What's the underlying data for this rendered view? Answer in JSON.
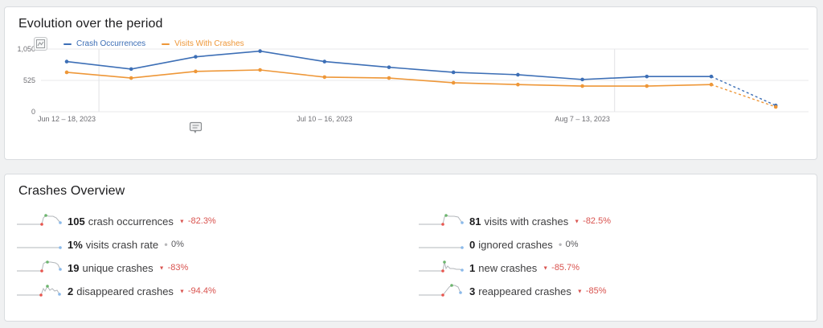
{
  "evolution_card": {
    "title": "Evolution over the period",
    "legend": [
      {
        "label": "Crash Occurrences",
        "color": "#3d6fb6"
      },
      {
        "label": "Visits With Crashes",
        "color": "#ee9738"
      }
    ]
  },
  "chart_data": {
    "type": "line",
    "title": "Evolution over the period",
    "x_unit": "week",
    "categories_visible_labels": [
      {
        "index": 0,
        "label": "Jun 12 – 18, 2023"
      },
      {
        "index": 4,
        "label": "Jul 10 – 16, 2023"
      },
      {
        "index": 8,
        "label": "Aug 7 – 13, 2023"
      }
    ],
    "series": [
      {
        "name": "Crash Occurrences",
        "color": "#3d6fb6",
        "values": [
          840,
          715,
          920,
          1015,
          840,
          745,
          660,
          620,
          540,
          590,
          590,
          105
        ]
      },
      {
        "name": "Visits With Crashes",
        "color": "#ee9738",
        "values": [
          660,
          565,
          675,
          700,
          580,
          565,
          485,
          455,
          430,
          430,
          455,
          81
        ]
      }
    ],
    "ylim": [
      0,
      1050
    ],
    "yticks": [
      0,
      525,
      1050
    ],
    "ytick_labels": [
      "0",
      "525",
      "1,050"
    ],
    "vgridlines": [
      0.5,
      8.5
    ],
    "last_segment_dashed": true,
    "grid": true,
    "legend_position": "top-left"
  },
  "overview_card": {
    "title": "Crashes Overview",
    "trend_icons": {
      "down": "▼",
      "flat": "●"
    },
    "spark_colors": {
      "line": "#b3b7bb",
      "red": "#e8564f",
      "green": "#6cb56d",
      "blue": "#8ab9ea"
    },
    "metrics": [
      {
        "value": "105",
        "label": "crash occurrences",
        "change": "-82.3%",
        "trend": "down",
        "spark": {
          "pts": [
            [
              0,
              15
            ],
            [
              31,
              15
            ],
            [
              33,
              7
            ],
            [
              36,
              4
            ],
            [
              40,
              5
            ],
            [
              45,
              5
            ],
            [
              49,
              7
            ],
            [
              54,
              13
            ]
          ],
          "red": [
            31,
            15
          ],
          "green": [
            36,
            4
          ],
          "blue": [
            54,
            13
          ]
        }
      },
      {
        "value": "81",
        "label": "visits with crashes",
        "change": "-82.5%",
        "trend": "down",
        "spark": {
          "pts": [
            [
              0,
              15
            ],
            [
              30,
              15
            ],
            [
              32,
              6
            ],
            [
              34,
              4
            ],
            [
              38,
              5
            ],
            [
              44,
              5
            ],
            [
              49,
              6
            ],
            [
              54,
              13
            ]
          ],
          "red": [
            30,
            15
          ],
          "green": [
            34,
            4
          ],
          "blue": [
            54,
            13
          ]
        }
      },
      {
        "value": "1%",
        "label": "visits crash rate",
        "change": "0%",
        "trend": "flat",
        "spark": {
          "pts": [
            [
              0,
              15
            ],
            [
              54,
              15
            ]
          ],
          "blue": [
            54,
            15
          ]
        }
      },
      {
        "value": "0",
        "label": "ignored crashes",
        "change": "0%",
        "trend": "flat",
        "spark": {
          "pts": [
            [
              0,
              15
            ],
            [
              54,
              15
            ]
          ],
          "blue": [
            54,
            15
          ]
        }
      },
      {
        "value": "19",
        "label": "unique crashes",
        "change": "-83%",
        "trend": "down",
        "spark": {
          "pts": [
            [
              0,
              15
            ],
            [
              31,
              15
            ],
            [
              33,
              6
            ],
            [
              36,
              4
            ],
            [
              42,
              4
            ],
            [
              48,
              5
            ],
            [
              51,
              7
            ],
            [
              54,
              13
            ]
          ],
          "red": [
            31,
            15
          ],
          "green": [
            38,
            4
          ],
          "blue": [
            54,
            13
          ]
        }
      },
      {
        "value": "1",
        "label": "new crashes",
        "change": "-85.7%",
        "trend": "down",
        "spark": {
          "pts": [
            [
              0,
              15
            ],
            [
              30,
              15
            ],
            [
              32,
              4
            ],
            [
              34,
              12
            ],
            [
              36,
              9
            ],
            [
              39,
              12
            ],
            [
              43,
              12
            ],
            [
              47,
              13
            ],
            [
              51,
              13
            ],
            [
              54,
              14
            ]
          ],
          "red": [
            30,
            15
          ],
          "green": [
            32,
            4
          ],
          "blue": [
            54,
            14
          ]
        }
      },
      {
        "value": "2",
        "label": "disappeared crashes",
        "change": "-94.4%",
        "trend": "down",
        "spark": {
          "pts": [
            [
              0,
              16
            ],
            [
              30,
              16
            ],
            [
              33,
              8
            ],
            [
              35,
              11
            ],
            [
              38,
              5
            ],
            [
              41,
              10
            ],
            [
              44,
              8
            ],
            [
              47,
              11
            ],
            [
              50,
              10
            ],
            [
              53,
              15
            ]
          ],
          "red": [
            30,
            16
          ],
          "green": [
            38,
            5
          ],
          "blue": [
            53,
            15
          ]
        }
      },
      {
        "value": "3",
        "label": "reappeared crashes",
        "change": "-85%",
        "trend": "down",
        "spark": {
          "pts": [
            [
              0,
              16
            ],
            [
              30,
              16
            ],
            [
              34,
              11
            ],
            [
              38,
              6
            ],
            [
              41,
              4
            ],
            [
              45,
              4
            ],
            [
              49,
              6
            ],
            [
              52,
              13
            ]
          ],
          "red": [
            30,
            16
          ],
          "green": [
            41,
            4
          ],
          "blue": [
            52,
            13
          ]
        }
      }
    ]
  }
}
